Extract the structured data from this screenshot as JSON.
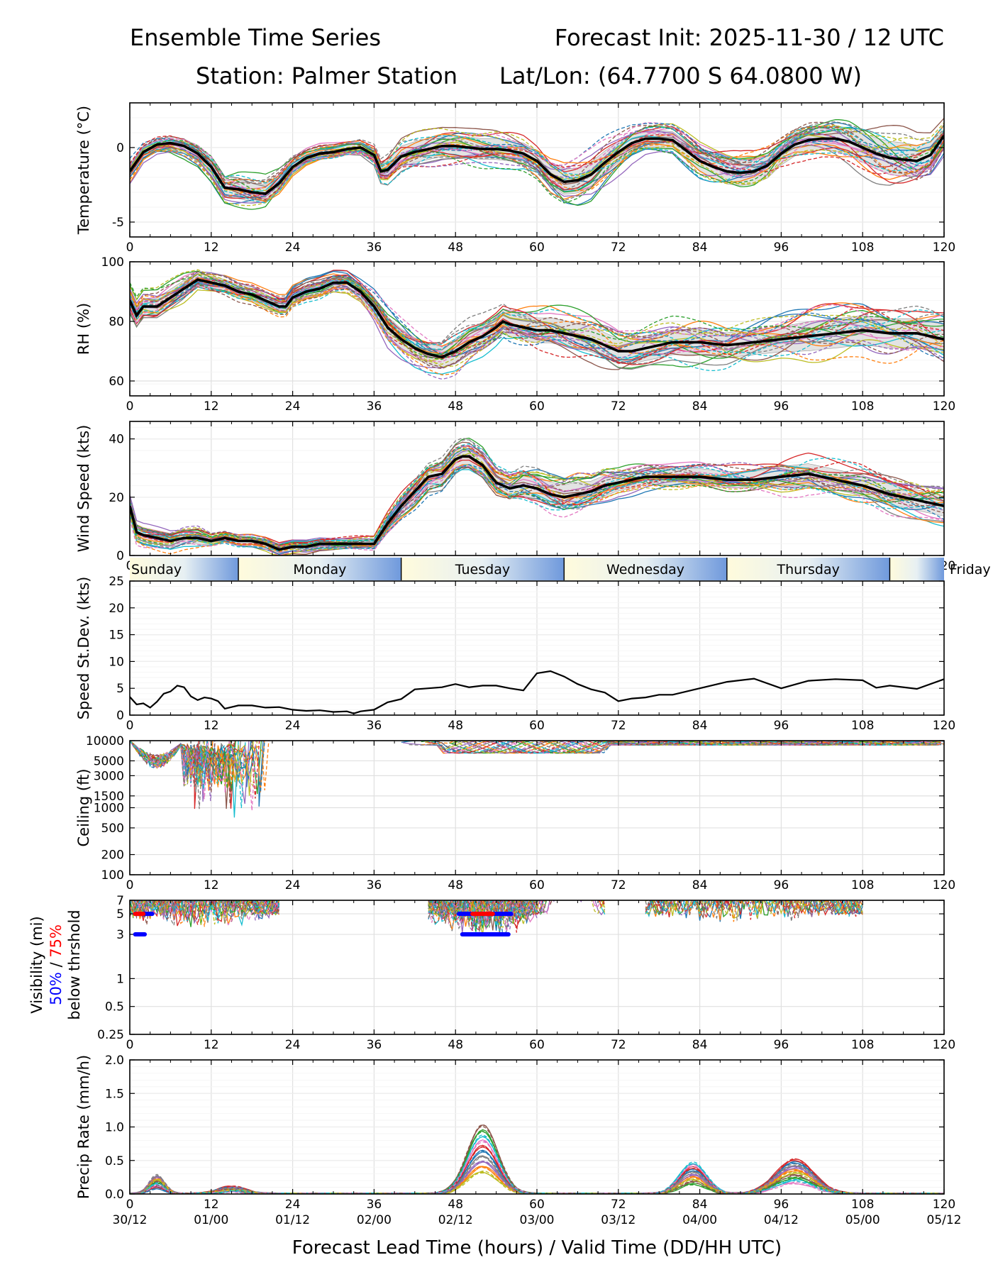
{
  "header": {
    "title_left": "Ensemble Time Series",
    "title_right": "Forecast Init: 2025-11-30 / 12 UTC",
    "station": "Station: Palmer Station",
    "latlon": "Lat/Lon: (64.7700 S 64.0800 W)"
  },
  "xaxis": {
    "label": "Forecast Lead Time (hours) / Valid Time (DD/HH UTC)",
    "range": [
      0,
      120
    ],
    "ticks": [
      "0",
      "12",
      "24",
      "36",
      "48",
      "60",
      "72",
      "84",
      "96",
      "108",
      "120"
    ],
    "valid_times": [
      "30/12",
      "01/00",
      "01/12",
      "02/00",
      "02/12",
      "03/00",
      "03/12",
      "04/00",
      "04/12",
      "05/00",
      "05/12"
    ]
  },
  "day_strip": {
    "days": [
      "Sunday",
      "Monday",
      "Tuesday",
      "Wednesday",
      "Thursday",
      "Friday"
    ],
    "boundaries_hours": [
      16,
      40,
      64,
      88,
      112
    ]
  },
  "visibility_label": {
    "line1": "Visibility (mi)",
    "pct50": "50%",
    "sep": " / ",
    "pct75": "75%",
    "line3": "below thrshold"
  },
  "chart_data": [
    {
      "id": "temperature",
      "type": "line",
      "ylabel": "Temperature (°C)",
      "ylim": [
        -6,
        3
      ],
      "yticks": [
        -5,
        0
      ],
      "x": [
        0,
        2,
        4,
        6,
        8,
        10,
        12,
        14,
        16,
        18,
        20,
        22,
        24,
        26,
        28,
        30,
        32,
        34,
        36,
        37,
        38,
        40,
        42,
        44,
        46,
        48,
        50,
        52,
        54,
        56,
        58,
        60,
        62,
        64,
        66,
        68,
        70,
        72,
        74,
        76,
        78,
        80,
        82,
        84,
        86,
        88,
        90,
        92,
        94,
        96,
        98,
        100,
        102,
        104,
        106,
        108,
        110,
        112,
        114,
        116,
        118,
        120
      ],
      "mean": [
        -1.6,
        -0.3,
        0.2,
        0.3,
        0.1,
        -0.4,
        -1.3,
        -2.7,
        -2.8,
        -3.0,
        -3.1,
        -2.4,
        -1.3,
        -0.7,
        -0.4,
        -0.3,
        -0.1,
        0.0,
        -0.5,
        -1.6,
        -1.5,
        -0.6,
        -0.3,
        -0.1,
        0.1,
        0.1,
        0.0,
        -0.1,
        -0.1,
        -0.2,
        -0.4,
        -0.9,
        -1.8,
        -2.3,
        -2.2,
        -1.8,
        -1.0,
        -0.3,
        0.3,
        0.6,
        0.6,
        0.5,
        -0.2,
        -0.9,
        -1.3,
        -1.6,
        -1.7,
        -1.6,
        -1.2,
        -0.4,
        0.2,
        0.5,
        0.6,
        0.6,
        0.4,
        0.0,
        -0.4,
        -0.7,
        -0.8,
        -0.9,
        -0.5,
        0.8
      ],
      "spread": [
        0.6,
        0.5,
        0.5,
        0.6,
        0.7,
        0.7,
        0.8,
        0.8,
        0.9,
        0.9,
        0.9,
        0.8,
        0.6,
        0.5,
        0.5,
        0.5,
        0.5,
        0.5,
        0.6,
        0.7,
        0.9,
        1.0,
        1.0,
        1.0,
        1.0,
        1.0,
        1.0,
        1.0,
        1.0,
        1.0,
        1.0,
        1.0,
        1.1,
        1.2,
        1.2,
        1.2,
        1.1,
        1.0,
        0.9,
        0.8,
        0.8,
        0.8,
        0.9,
        1.0,
        1.1,
        1.2,
        1.2,
        1.2,
        1.2,
        1.1,
        1.1,
        1.1,
        1.1,
        1.2,
        1.3,
        1.4,
        1.5,
        1.6,
        1.6,
        1.5,
        1.3,
        1.1
      ]
    },
    {
      "id": "rh",
      "type": "line",
      "ylabel": "RH (%)",
      "ylim": [
        55,
        100
      ],
      "yticks": [
        60,
        80,
        100
      ],
      "x": [
        0,
        1,
        2,
        4,
        6,
        8,
        10,
        12,
        14,
        16,
        18,
        20,
        22,
        23,
        24,
        26,
        28,
        30,
        32,
        34,
        36,
        38,
        40,
        42,
        44,
        46,
        48,
        50,
        52,
        54,
        55,
        56,
        58,
        60,
        62,
        64,
        66,
        68,
        70,
        72,
        74,
        76,
        78,
        80,
        84,
        88,
        92,
        96,
        100,
        104,
        108,
        112,
        116,
        118,
        120
      ],
      "mean": [
        87,
        82,
        85,
        85,
        88,
        91,
        94,
        93,
        92,
        90,
        89,
        87,
        85,
        85,
        88,
        90,
        91,
        93,
        93,
        90,
        85,
        78,
        74,
        71,
        69,
        68,
        70,
        73,
        75,
        78,
        80,
        79,
        78,
        77,
        77,
        76,
        75,
        74,
        72,
        70,
        70,
        71,
        72,
        73,
        73,
        72,
        73,
        74,
        75,
        76,
        77,
        76,
        76,
        75,
        74
      ],
      "spread": [
        4,
        4,
        4,
        4,
        4,
        4,
        3,
        3,
        3,
        3,
        3,
        3,
        3,
        3,
        3,
        3,
        3,
        3,
        3,
        3,
        4,
        5,
        5,
        5,
        5,
        5,
        6,
        6,
        6,
        6,
        6,
        6,
        6,
        6,
        6,
        6,
        6,
        6,
        6,
        6,
        6,
        6,
        6,
        6,
        6,
        6,
        6,
        6,
        7,
        7,
        7,
        7,
        7,
        7,
        7
      ]
    },
    {
      "id": "wind",
      "type": "line",
      "ylabel": "Wind Speed (kts)",
      "ylim": [
        0,
        46
      ],
      "yticks": [
        0,
        20,
        40
      ],
      "x": [
        0,
        1,
        2,
        4,
        6,
        8,
        10,
        12,
        14,
        16,
        18,
        20,
        22,
        24,
        26,
        28,
        30,
        32,
        34,
        36,
        38,
        40,
        42,
        44,
        46,
        48,
        49,
        50,
        52,
        54,
        56,
        58,
        60,
        62,
        64,
        66,
        68,
        70,
        72,
        76,
        80,
        84,
        88,
        92,
        96,
        100,
        104,
        108,
        112,
        116,
        120
      ],
      "mean": [
        17,
        8,
        7,
        6,
        5,
        6,
        6,
        5,
        6,
        5,
        5,
        4,
        2,
        3,
        3,
        4,
        4,
        4,
        4,
        4,
        11,
        17,
        22,
        27,
        28,
        33,
        34,
        34,
        31,
        25,
        23,
        24,
        23,
        21,
        20,
        21,
        22,
        24,
        25,
        27,
        27,
        27,
        26,
        26,
        27,
        28,
        26,
        24,
        21,
        19,
        17
      ],
      "spread": [
        3,
        3,
        3,
        3,
        3,
        3,
        3,
        2,
        2,
        2,
        2,
        2,
        2,
        2,
        2,
        2,
        2,
        2,
        2,
        2,
        3,
        4,
        5,
        5,
        5,
        5,
        5,
        5,
        5,
        5,
        5,
        6,
        6,
        6,
        6,
        6,
        5,
        5,
        4,
        4,
        4,
        4,
        4,
        4,
        5,
        5,
        5,
        5,
        5,
        5,
        5
      ]
    },
    {
      "id": "stdev",
      "type": "line",
      "ylabel": "Speed St.Dev. (kts)",
      "ylim": [
        0,
        25
      ],
      "yticks": [
        0,
        5,
        10,
        15,
        20,
        25
      ],
      "x": [
        0,
        1,
        2,
        3,
        4,
        5,
        6,
        7,
        8,
        9,
        10,
        11,
        12,
        13,
        14,
        16,
        18,
        20,
        22,
        24,
        26,
        28,
        30,
        32,
        33,
        34,
        36,
        38,
        40,
        42,
        44,
        46,
        48,
        50,
        52,
        54,
        56,
        58,
        60,
        62,
        64,
        66,
        68,
        70,
        72,
        74,
        76,
        78,
        80,
        84,
        88,
        92,
        96,
        100,
        104,
        108,
        110,
        112,
        116,
        120
      ],
      "values": [
        3.4,
        2.0,
        2.2,
        1.4,
        2.5,
        4.0,
        4.4,
        5.5,
        5.2,
        3.5,
        2.8,
        3.3,
        3.1,
        2.6,
        1.2,
        1.8,
        1.8,
        1.4,
        1.5,
        1.0,
        0.8,
        0.9,
        0.6,
        0.7,
        0.3,
        0.7,
        1.0,
        2.4,
        3.0,
        4.8,
        5.0,
        5.2,
        5.8,
        5.2,
        5.5,
        5.5,
        5.0,
        4.6,
        7.8,
        8.2,
        7.2,
        5.8,
        4.8,
        4.2,
        2.6,
        3.1,
        3.3,
        3.8,
        3.8,
        5.0,
        6.2,
        6.8,
        5.0,
        6.4,
        6.7,
        6.5,
        5.1,
        5.5,
        4.9,
        6.7
      ]
    },
    {
      "id": "ceiling",
      "type": "line",
      "ylabel": "Ceiling (ft)",
      "yscale": "log",
      "ylim": [
        100,
        10000
      ],
      "yticks": [
        100,
        200,
        500,
        1000,
        1500,
        3000,
        5000,
        10000
      ]
    },
    {
      "id": "visibility",
      "type": "line",
      "yscale": "log",
      "ylim": [
        0.25,
        7
      ],
      "yticks": [
        0.25,
        0.5,
        1,
        3,
        5,
        7
      ],
      "threshold_bars": [
        {
          "pct": "50%",
          "color": "#0000ff",
          "y": 5,
          "x_start": 0.8,
          "x_end": 3.3
        },
        {
          "pct": "50%",
          "color": "#0000ff",
          "y": 3,
          "x_start": 0.8,
          "x_end": 2.2
        },
        {
          "pct": "75%",
          "color": "#ff0000",
          "y": 5,
          "x_start": 0.8,
          "x_end": 2.0
        },
        {
          "pct": "50%",
          "color": "#0000ff",
          "y": 5,
          "x_start": 48.5,
          "x_end": 56.2
        },
        {
          "pct": "50%",
          "color": "#0000ff",
          "y": 3,
          "x_start": 49.0,
          "x_end": 55.8
        },
        {
          "pct": "75%",
          "color": "#ff0000",
          "y": 5,
          "x_start": 50.5,
          "x_end": 53.5
        }
      ]
    },
    {
      "id": "precip",
      "type": "line",
      "ylabel": "Precip Rate (mm/h)",
      "ylim": [
        0,
        2.0
      ],
      "yticks": [
        0.0,
        0.5,
        1.0,
        1.5,
        2.0
      ]
    }
  ]
}
